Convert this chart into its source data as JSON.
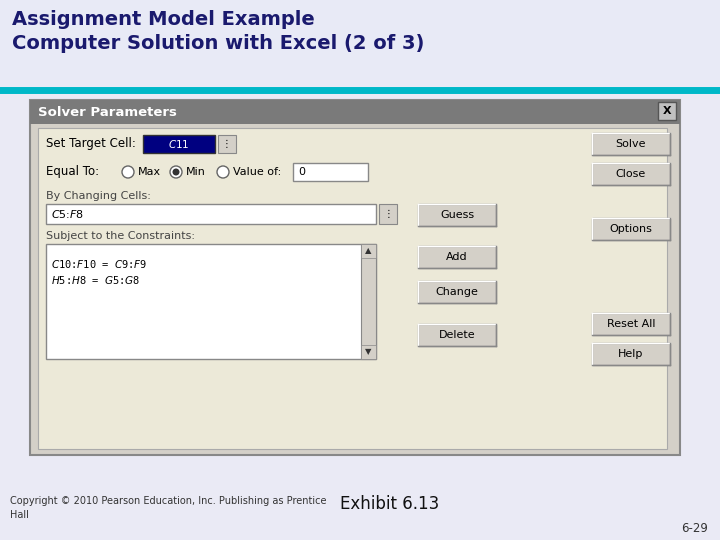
{
  "title": "Assignment Model Example\nComputer Solution with Excel (2 of 3)",
  "title_color": "#1a1a6e",
  "title_bg_color": "#e8eaf6",
  "slide_bg_color": "#eaeaf5",
  "teal_line_color": "#00b8c8",
  "copyright_text": "Copyright © 2010 Pearson Education, Inc. Publishing as Prentice\nHall",
  "exhibit_text": "Exhibit 6.13",
  "page_num": "6-29",
  "dialog_title": "Solver Parameters",
  "dialog_header_bg": "#7a7a7a",
  "dialog_title_color": "#ffffff",
  "dialog_body_bg": "#d4d0c8",
  "dialog_inner_bg": "#ece9d8",
  "set_target_label": "Set Target Cell:",
  "target_cell_value": "$C$11",
  "equal_to_label": "Equal To:",
  "max_label": "Max",
  "min_label": "Min",
  "value_of_label": "Value of:",
  "value_of_val": "0",
  "by_changing_label": "By Changing Cells:",
  "changing_cells_val": "$C$5:$F$8",
  "subject_label": "Subject to the Constraints:",
  "constraint1": "$C$10:$F$10 = $C$9:$F$9",
  "constraint2": "$H$5:$H$8 = $G$5:$G$8",
  "btn_solve": "Solve",
  "btn_close": "Close",
  "btn_guess": "Guess",
  "btn_options": "Options",
  "btn_add": "Add",
  "btn_change": "Change",
  "btn_delete": "Delete",
  "btn_reset": "Reset All",
  "btn_help": "Help"
}
